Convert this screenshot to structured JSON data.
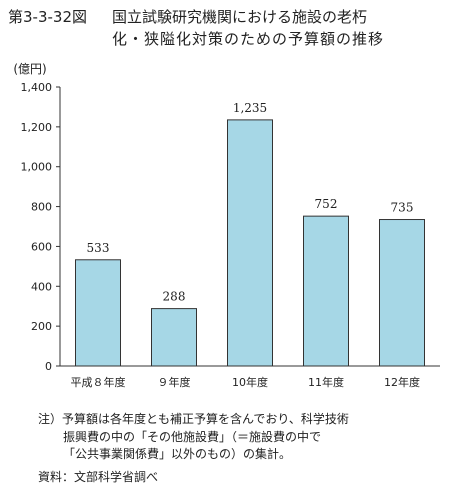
{
  "figure": {
    "number": "第3-3-32図",
    "title_line1": "国立試験研究機関における施設の老朽",
    "title_line2": "化・狭隘化対策のための予算額の推移"
  },
  "chart_data": {
    "type": "bar",
    "unit_label": "(億円)",
    "categories": [
      "平成８年度",
      "９年度",
      "10年度",
      "11年度",
      "12年度"
    ],
    "values": [
      533,
      288,
      1235,
      752,
      735
    ],
    "data_labels": [
      "533",
      "288",
      "1,235",
      "752",
      "735"
    ],
    "ylim": [
      0,
      1400
    ],
    "yticks": [
      0,
      200,
      400,
      600,
      800,
      1000,
      1200,
      1400
    ],
    "ytick_labels": [
      "0",
      "200",
      "400",
      "600",
      "800",
      "1,000",
      "1,200",
      "1,400"
    ],
    "grid": false,
    "bar_color": "#a6d7e6"
  },
  "notes": {
    "line1": "注）予算額は各年度とも補正予算を含んでおり、科学技術",
    "line2": "振興費の中の「その他施設費」（＝施設費の中で",
    "line3": "「公共事業関係費」以外のもの）の集計。"
  },
  "source": "資料：文部科学省調べ"
}
